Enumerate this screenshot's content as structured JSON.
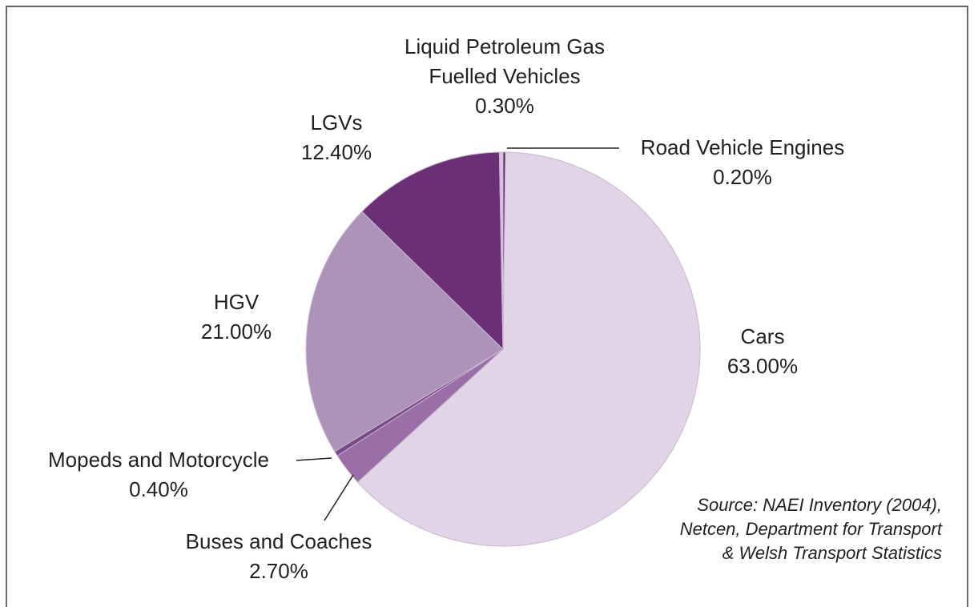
{
  "chart_data": {
    "type": "pie",
    "categories": [
      "Road Vehicle Engines",
      "Cars",
      "Buses and Coaches",
      "Mopeds and Motorcycle",
      "HGV",
      "LGVs",
      "Liquid Petroleum Gas Fuelled Vehicles"
    ],
    "values": [
      0.2,
      63,
      2.7,
      0.4,
      21,
      12.4,
      0.3
    ],
    "value_labels": [
      "0.20%",
      "63.00%",
      "2.70%",
      "0.40%",
      "21.00%",
      "12.40%",
      "0.30%"
    ],
    "colors": [
      "#5e2468",
      "#e1d4e6",
      "#9a6ea6",
      "#7a4a86",
      "#ad93b9",
      "#6b2f76",
      "#d6c6dc"
    ],
    "source": [
      "Source: NAEI Inventory (2004),",
      "Netcen, Department for Transport",
      "& Welsh Transport Statistics"
    ]
  }
}
